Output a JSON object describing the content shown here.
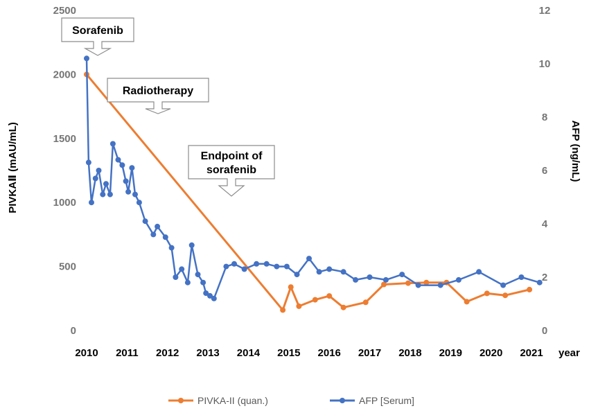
{
  "chart_data": {
    "type": "line",
    "x_unit_label": "year",
    "x_ticks": [
      "2010",
      "2011",
      "2012",
      "2013",
      "2014",
      "2015",
      "2016",
      "2017",
      "2018",
      "2019",
      "2020",
      "2021"
    ],
    "xlim": [
      2010,
      2021
    ],
    "y_left": {
      "label": "PIVKAⅡ (mAU/mL)",
      "ticks": [
        "0",
        "500",
        "1000",
        "1500",
        "2000",
        "2500"
      ],
      "lim": [
        0,
        2500
      ]
    },
    "y_right": {
      "label": "AFP (ng/mL)",
      "ticks": [
        "0",
        "2",
        "4",
        "6",
        "8",
        "10",
        "12"
      ],
      "lim": [
        0,
        12
      ]
    },
    "grid": false,
    "legend_position": "bottom",
    "series": [
      {
        "name": "PIVKA-II (quan.)",
        "axis": "left",
        "color": "#ED7D31",
        "points": [
          [
            2010.0,
            2000
          ],
          [
            2014.85,
            160
          ],
          [
            2015.05,
            340
          ],
          [
            2015.25,
            190
          ],
          [
            2015.65,
            240
          ],
          [
            2016.0,
            270
          ],
          [
            2016.35,
            180
          ],
          [
            2016.9,
            220
          ],
          [
            2017.35,
            360
          ],
          [
            2017.95,
            370
          ],
          [
            2018.4,
            375
          ],
          [
            2018.9,
            375
          ],
          [
            2019.4,
            225
          ],
          [
            2019.9,
            290
          ],
          [
            2020.35,
            275
          ],
          [
            2020.95,
            320
          ]
        ]
      },
      {
        "name": "AFP [Serum]",
        "axis": "right",
        "color": "#4472C4",
        "points": [
          [
            2010.0,
            10.2
          ],
          [
            2010.05,
            6.3
          ],
          [
            2010.12,
            4.8
          ],
          [
            2010.22,
            5.7
          ],
          [
            2010.3,
            6.0
          ],
          [
            2010.4,
            5.1
          ],
          [
            2010.48,
            5.5
          ],
          [
            2010.58,
            5.1
          ],
          [
            2010.65,
            7.0
          ],
          [
            2010.78,
            6.4
          ],
          [
            2010.88,
            6.2
          ],
          [
            2010.97,
            5.6
          ],
          [
            2011.03,
            5.2
          ],
          [
            2011.12,
            6.1
          ],
          [
            2011.2,
            5.1
          ],
          [
            2011.3,
            4.8
          ],
          [
            2011.45,
            4.1
          ],
          [
            2011.65,
            3.6
          ],
          [
            2011.75,
            3.9
          ],
          [
            2011.95,
            3.5
          ],
          [
            2012.1,
            3.1
          ],
          [
            2012.2,
            2.0
          ],
          [
            2012.35,
            2.3
          ],
          [
            2012.5,
            1.8
          ],
          [
            2012.6,
            3.2
          ],
          [
            2012.75,
            2.1
          ],
          [
            2012.88,
            1.8
          ],
          [
            2012.95,
            1.4
          ],
          [
            2013.05,
            1.3
          ],
          [
            2013.15,
            1.2
          ],
          [
            2013.45,
            2.4
          ],
          [
            2013.65,
            2.5
          ],
          [
            2013.9,
            2.3
          ],
          [
            2014.2,
            2.5
          ],
          [
            2014.45,
            2.5
          ],
          [
            2014.7,
            2.4
          ],
          [
            2014.95,
            2.4
          ],
          [
            2015.2,
            2.1
          ],
          [
            2015.5,
            2.7
          ],
          [
            2015.75,
            2.2
          ],
          [
            2016.0,
            2.3
          ],
          [
            2016.35,
            2.2
          ],
          [
            2016.65,
            1.9
          ],
          [
            2017.0,
            2.0
          ],
          [
            2017.4,
            1.9
          ],
          [
            2017.8,
            2.1
          ],
          [
            2018.2,
            1.7
          ],
          [
            2018.75,
            1.7
          ],
          [
            2019.2,
            1.9
          ],
          [
            2019.7,
            2.2
          ],
          [
            2020.3,
            1.7
          ],
          [
            2020.75,
            2.0
          ],
          [
            2021.2,
            1.8
          ]
        ]
      }
    ],
    "annotations": [
      {
        "text": "Sorafenib"
      },
      {
        "text": "Radiotherapy"
      },
      {
        "text": "Endpoint of\nsorafenib"
      }
    ]
  }
}
